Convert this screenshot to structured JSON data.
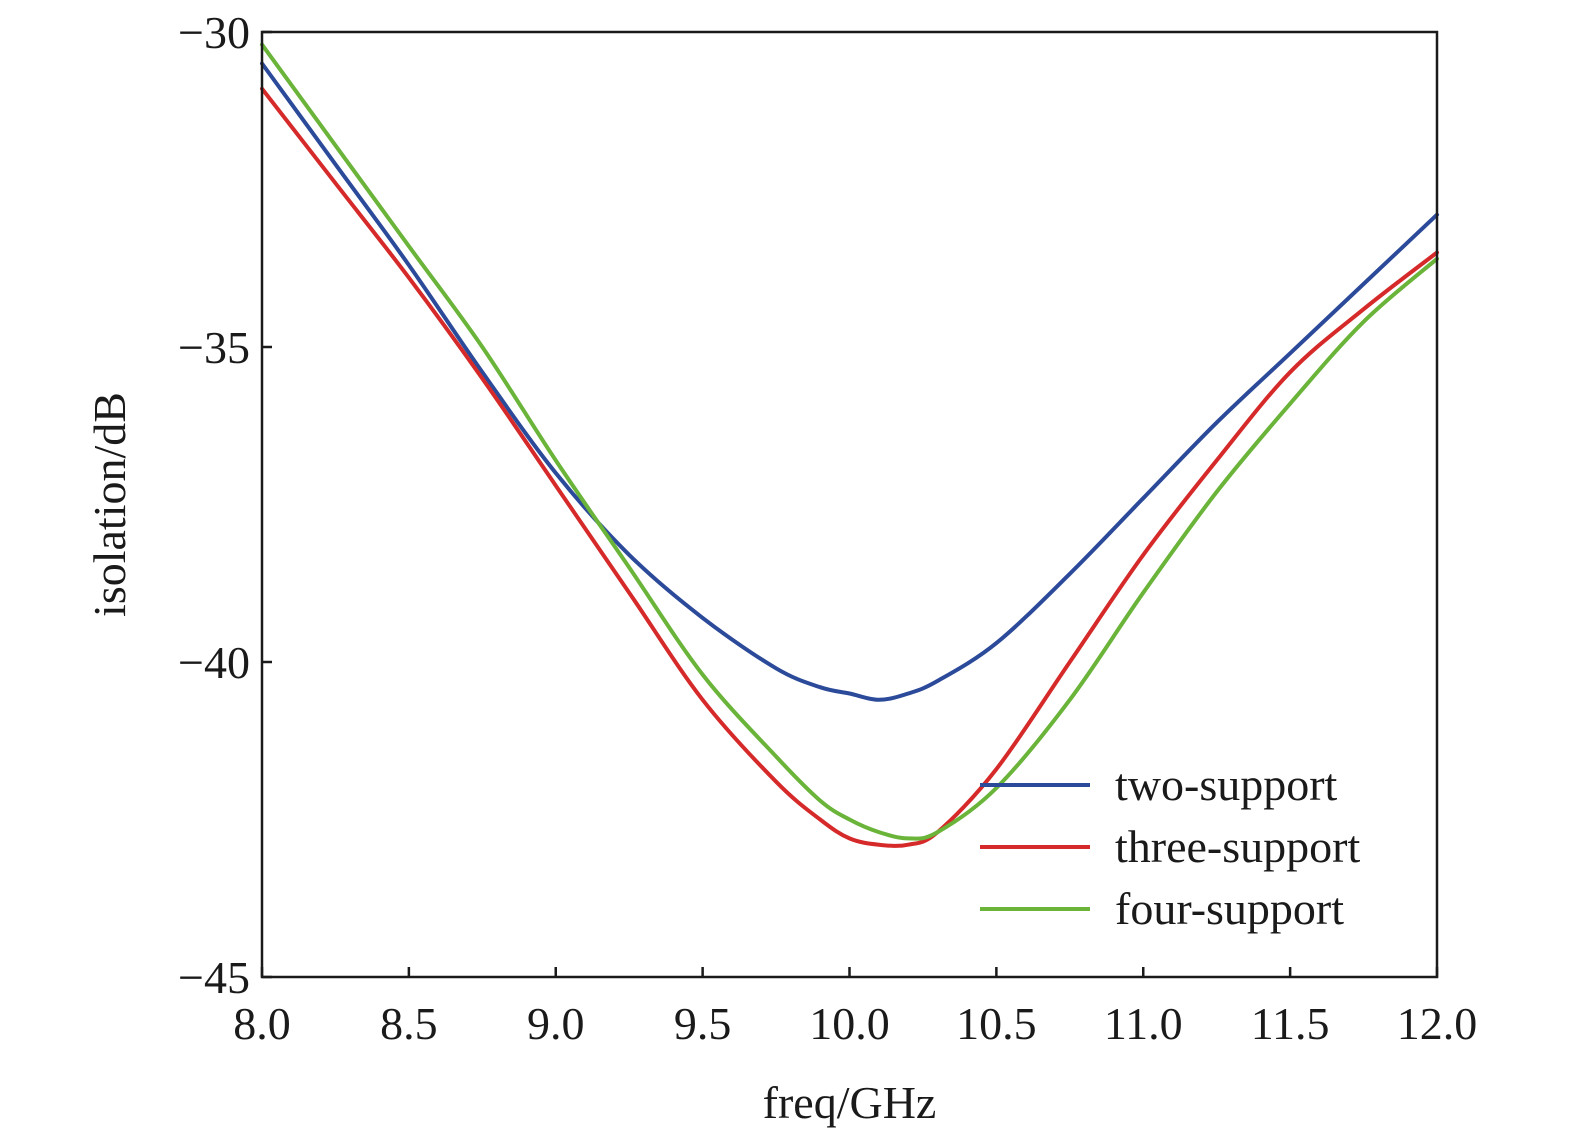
{
  "chart_data": {
    "type": "line",
    "title": "",
    "xlabel": "freq/GHz",
    "ylabel": "isolation/dB",
    "xlim": [
      8.0,
      12.0
    ],
    "ylim": [
      -45,
      -30
    ],
    "x_ticks": [
      "8.0",
      "8.5",
      "9.0",
      "9.5",
      "10.0",
      "10.5",
      "11.0",
      "11.5",
      "12.0"
    ],
    "y_ticks": [
      "−30",
      "−35",
      "−40",
      "−45"
    ],
    "grid": false,
    "legend_position": "bottom-right",
    "x": [
      8.0,
      8.25,
      8.5,
      8.75,
      9.0,
      9.25,
      9.5,
      9.75,
      9.9,
      10.0,
      10.1,
      10.2,
      10.3,
      10.5,
      10.75,
      11.0,
      11.25,
      11.5,
      11.75,
      12.0
    ],
    "series": [
      {
        "name": "two-support",
        "color": "#2c4a9a",
        "values": [
          -30.5,
          -32.1,
          -33.7,
          -35.4,
          -37.0,
          -38.3,
          -39.3,
          -40.1,
          -40.4,
          -40.5,
          -40.6,
          -40.5,
          -40.3,
          -39.7,
          -38.6,
          -37.4,
          -36.2,
          -35.1,
          -34.0,
          -32.9
        ]
      },
      {
        "name": "three-support",
        "color": "#d62a2a",
        "values": [
          -30.9,
          -32.4,
          -33.9,
          -35.5,
          -37.2,
          -38.9,
          -40.6,
          -41.9,
          -42.5,
          -42.8,
          -42.9,
          -42.9,
          -42.7,
          -41.7,
          -40.0,
          -38.3,
          -36.8,
          -35.4,
          -34.4,
          -33.5
        ]
      },
      {
        "name": "four-support",
        "color": "#6ab43a",
        "values": [
          -30.2,
          -31.8,
          -33.4,
          -35.0,
          -36.8,
          -38.5,
          -40.2,
          -41.5,
          -42.2,
          -42.5,
          -42.7,
          -42.8,
          -42.7,
          -42.0,
          -40.6,
          -38.9,
          -37.3,
          -35.9,
          -34.6,
          -33.6
        ]
      }
    ]
  }
}
